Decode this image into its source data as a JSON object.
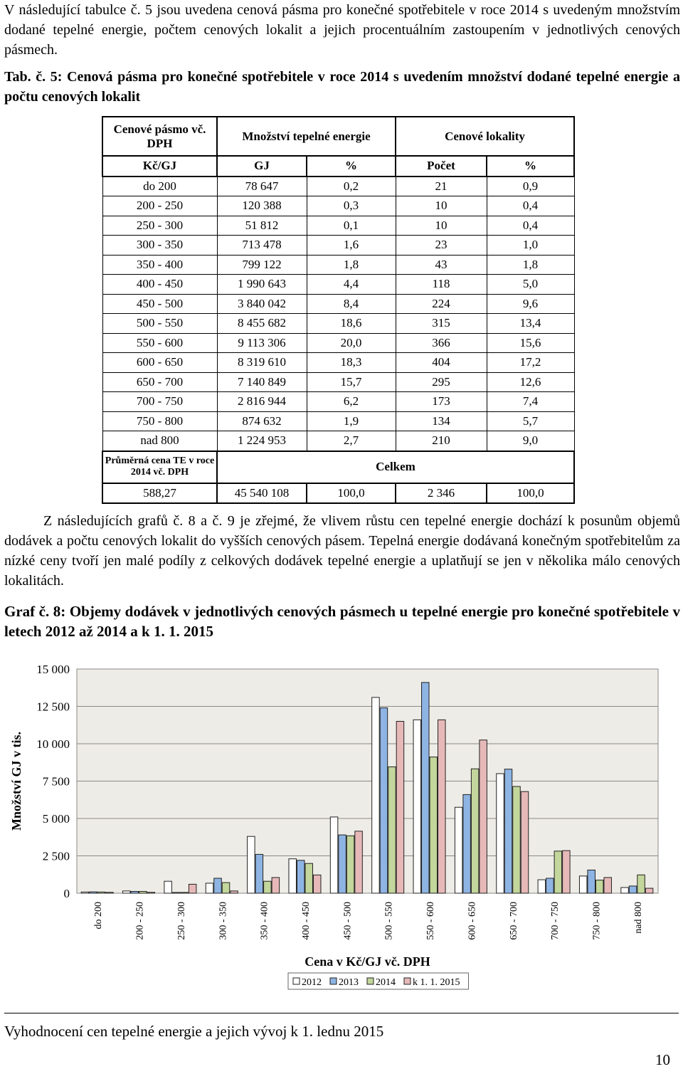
{
  "intro": "V následující tabulce č. 5 jsou uvedena cenová pásma pro konečné spotřebitele v roce 2014 s uvedeným množstvím dodané tepelné energie, počtem cenových lokalit a jejich procentuálním zastoupením v jednotlivých cenových pásmech.",
  "table_caption": "Tab. č. 5: Cenová pásma pro konečné spotřebitele v roce 2014 s uvedením množství dodané tepelné energie a počtu cenových lokalit",
  "table": {
    "header": [
      "Cenové pásmo vč. DPH",
      "Množství tepelné energie",
      "Cenové lokality"
    ],
    "units": [
      "Kč/GJ",
      "GJ",
      "%",
      "Počet",
      "%"
    ],
    "rows": [
      [
        "do 200",
        "78 647",
        "0,2",
        "21",
        "0,9"
      ],
      [
        "200 - 250",
        "120 388",
        "0,3",
        "10",
        "0,4"
      ],
      [
        "250 - 300",
        "51 812",
        "0,1",
        "10",
        "0,4"
      ],
      [
        "300 - 350",
        "713 478",
        "1,6",
        "23",
        "1,0"
      ],
      [
        "350 - 400",
        "799 122",
        "1,8",
        "43",
        "1,8"
      ],
      [
        "400 - 450",
        "1 990 643",
        "4,4",
        "118",
        "5,0"
      ],
      [
        "450 - 500",
        "3 840 042",
        "8,4",
        "224",
        "9,6"
      ],
      [
        "500 - 550",
        "8 455 682",
        "18,6",
        "315",
        "13,4"
      ],
      [
        "550 - 600",
        "9 113 306",
        "20,0",
        "366",
        "15,6"
      ],
      [
        "600 - 650",
        "8 319 610",
        "18,3",
        "404",
        "17,2"
      ],
      [
        "650 - 700",
        "7 140 849",
        "15,7",
        "295",
        "12,6"
      ],
      [
        "700 - 750",
        "2 816 944",
        "6,2",
        "173",
        "7,4"
      ],
      [
        "750 - 800",
        "874 632",
        "1,9",
        "134",
        "5,7"
      ],
      [
        "nad 800",
        "1 224 953",
        "2,7",
        "210",
        "9,0"
      ]
    ],
    "total_header": [
      "Průměrná cena TE v roce 2014 vč. DPH",
      "Celkem"
    ],
    "total_row": [
      "588,27",
      "45 540 108",
      "100,0",
      "2 346",
      "100,0"
    ]
  },
  "paragraph": "Z následujících grafů č. 8 a č. 9 je zřejmé, že vlivem růstu cen tepelné energie dochází k posunům objemů dodávek a počtu cenových lokalit do vyšších cenových pásem. Tepelná energie dodávaná konečným spotřebitelům za nízké ceny tvoří jen malé podíly z celkových dodávek tepelné energie a uplatňují se jen v několika málo cenových lokalitách.",
  "figure_caption": "Graf č. 8: Objemy dodávek v jednotlivých cenových pásmech u tepelné energie pro konečné spotřebitele v letech 2012 až 2014 a k 1. 1. 2015",
  "chart_data": {
    "type": "bar",
    "y_label": "Množství GJ v tis.",
    "x_label": "Cena v Kč/GJ vč. DPH",
    "categories": [
      "do 200",
      "200 - 250",
      "250 - 300",
      "300 - 350",
      "350 - 400",
      "400 - 450",
      "450 - 500",
      "500 - 550",
      "550 - 600",
      "600 - 650",
      "650 - 700",
      "700 - 750",
      "750 - 800",
      "nad 800"
    ],
    "series": [
      {
        "name": "2012",
        "color": "#ffffff",
        "values": [
          80,
          150,
          800,
          670,
          3800,
          2300,
          5100,
          13100,
          11600,
          5750,
          8000,
          900,
          1150,
          380
        ]
      },
      {
        "name": "2013",
        "color": "#8eb4e3",
        "values": [
          90,
          120,
          50,
          1000,
          2600,
          2200,
          3900,
          12400,
          14100,
          6600,
          8300,
          1000,
          1550,
          480
        ]
      },
      {
        "name": "2014",
        "color": "#c3d69b",
        "values": [
          80,
          120,
          52,
          710,
          800,
          1990,
          3840,
          8456,
          9113,
          8320,
          7141,
          2817,
          875,
          1225
        ]
      },
      {
        "name": "k 1. 1. 2015",
        "color": "#e6b9b8",
        "values": [
          60,
          60,
          600,
          150,
          1050,
          1220,
          4150,
          11500,
          11600,
          10250,
          6800,
          2850,
          1050,
          330
        ]
      }
    ],
    "ylim": [
      0,
      15000
    ],
    "yticks": [
      0,
      {
        "value": 2500,
        "label": "2 500"
      },
      {
        "value": 5000,
        "label": "5 000"
      },
      {
        "value": 7500,
        "label": "7 500"
      },
      {
        "value": 10000,
        "label": "10 000"
      },
      {
        "value": 12500,
        "label": "12 500"
      },
      {
        "value": 15000,
        "label": "15 000"
      }
    ],
    "grid": true
  },
  "footer": "Vyhodnocení cen tepelné energie a jejich vývoj k 1. lednu 2015",
  "page_number": "10"
}
